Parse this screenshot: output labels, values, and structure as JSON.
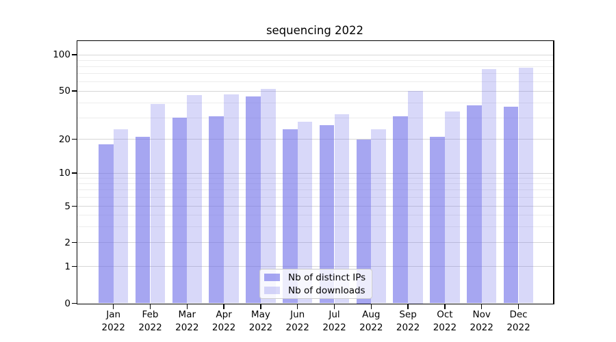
{
  "chart_data": {
    "type": "bar",
    "title": "sequencing 2022",
    "categories": [
      "Jan",
      "Feb",
      "Mar",
      "Apr",
      "May",
      "Jun",
      "Jul",
      "Aug",
      "Sep",
      "Oct",
      "Nov",
      "Dec"
    ],
    "year": "2022",
    "series": [
      {
        "name": "Nb of distinct IPs",
        "shade": "dark",
        "values": [
          18,
          21,
          30,
          31,
          45,
          24,
          26,
          20,
          31,
          21,
          38,
          37
        ]
      },
      {
        "name": "Nb of downloads",
        "shade": "light",
        "values": [
          24,
          39,
          46,
          47,
          52,
          28,
          32,
          24,
          50,
          34,
          76,
          78
        ]
      }
    ],
    "yscale": "log above 1, linear 0-1",
    "y_ticks": [
      0,
      1,
      2,
      5,
      10,
      20,
      50,
      100
    ],
    "y_minor_gridlines": [
      3,
      4,
      6,
      7,
      8,
      9,
      30,
      40,
      60,
      70,
      80,
      90
    ],
    "ylim": [
      0,
      115
    ],
    "grid": true,
    "legend_position": "lower-center"
  },
  "colors": {
    "bar_base": "#7070e8",
    "dark_alpha": 0.62,
    "light_alpha": 0.27,
    "major_grid": "#d6d6d6",
    "minor_grid": "#ececec",
    "axis": "#000000",
    "text": "#000000",
    "legend_border": "#cccccc",
    "legend_bg": "rgba(255,255,255,0.8)"
  }
}
